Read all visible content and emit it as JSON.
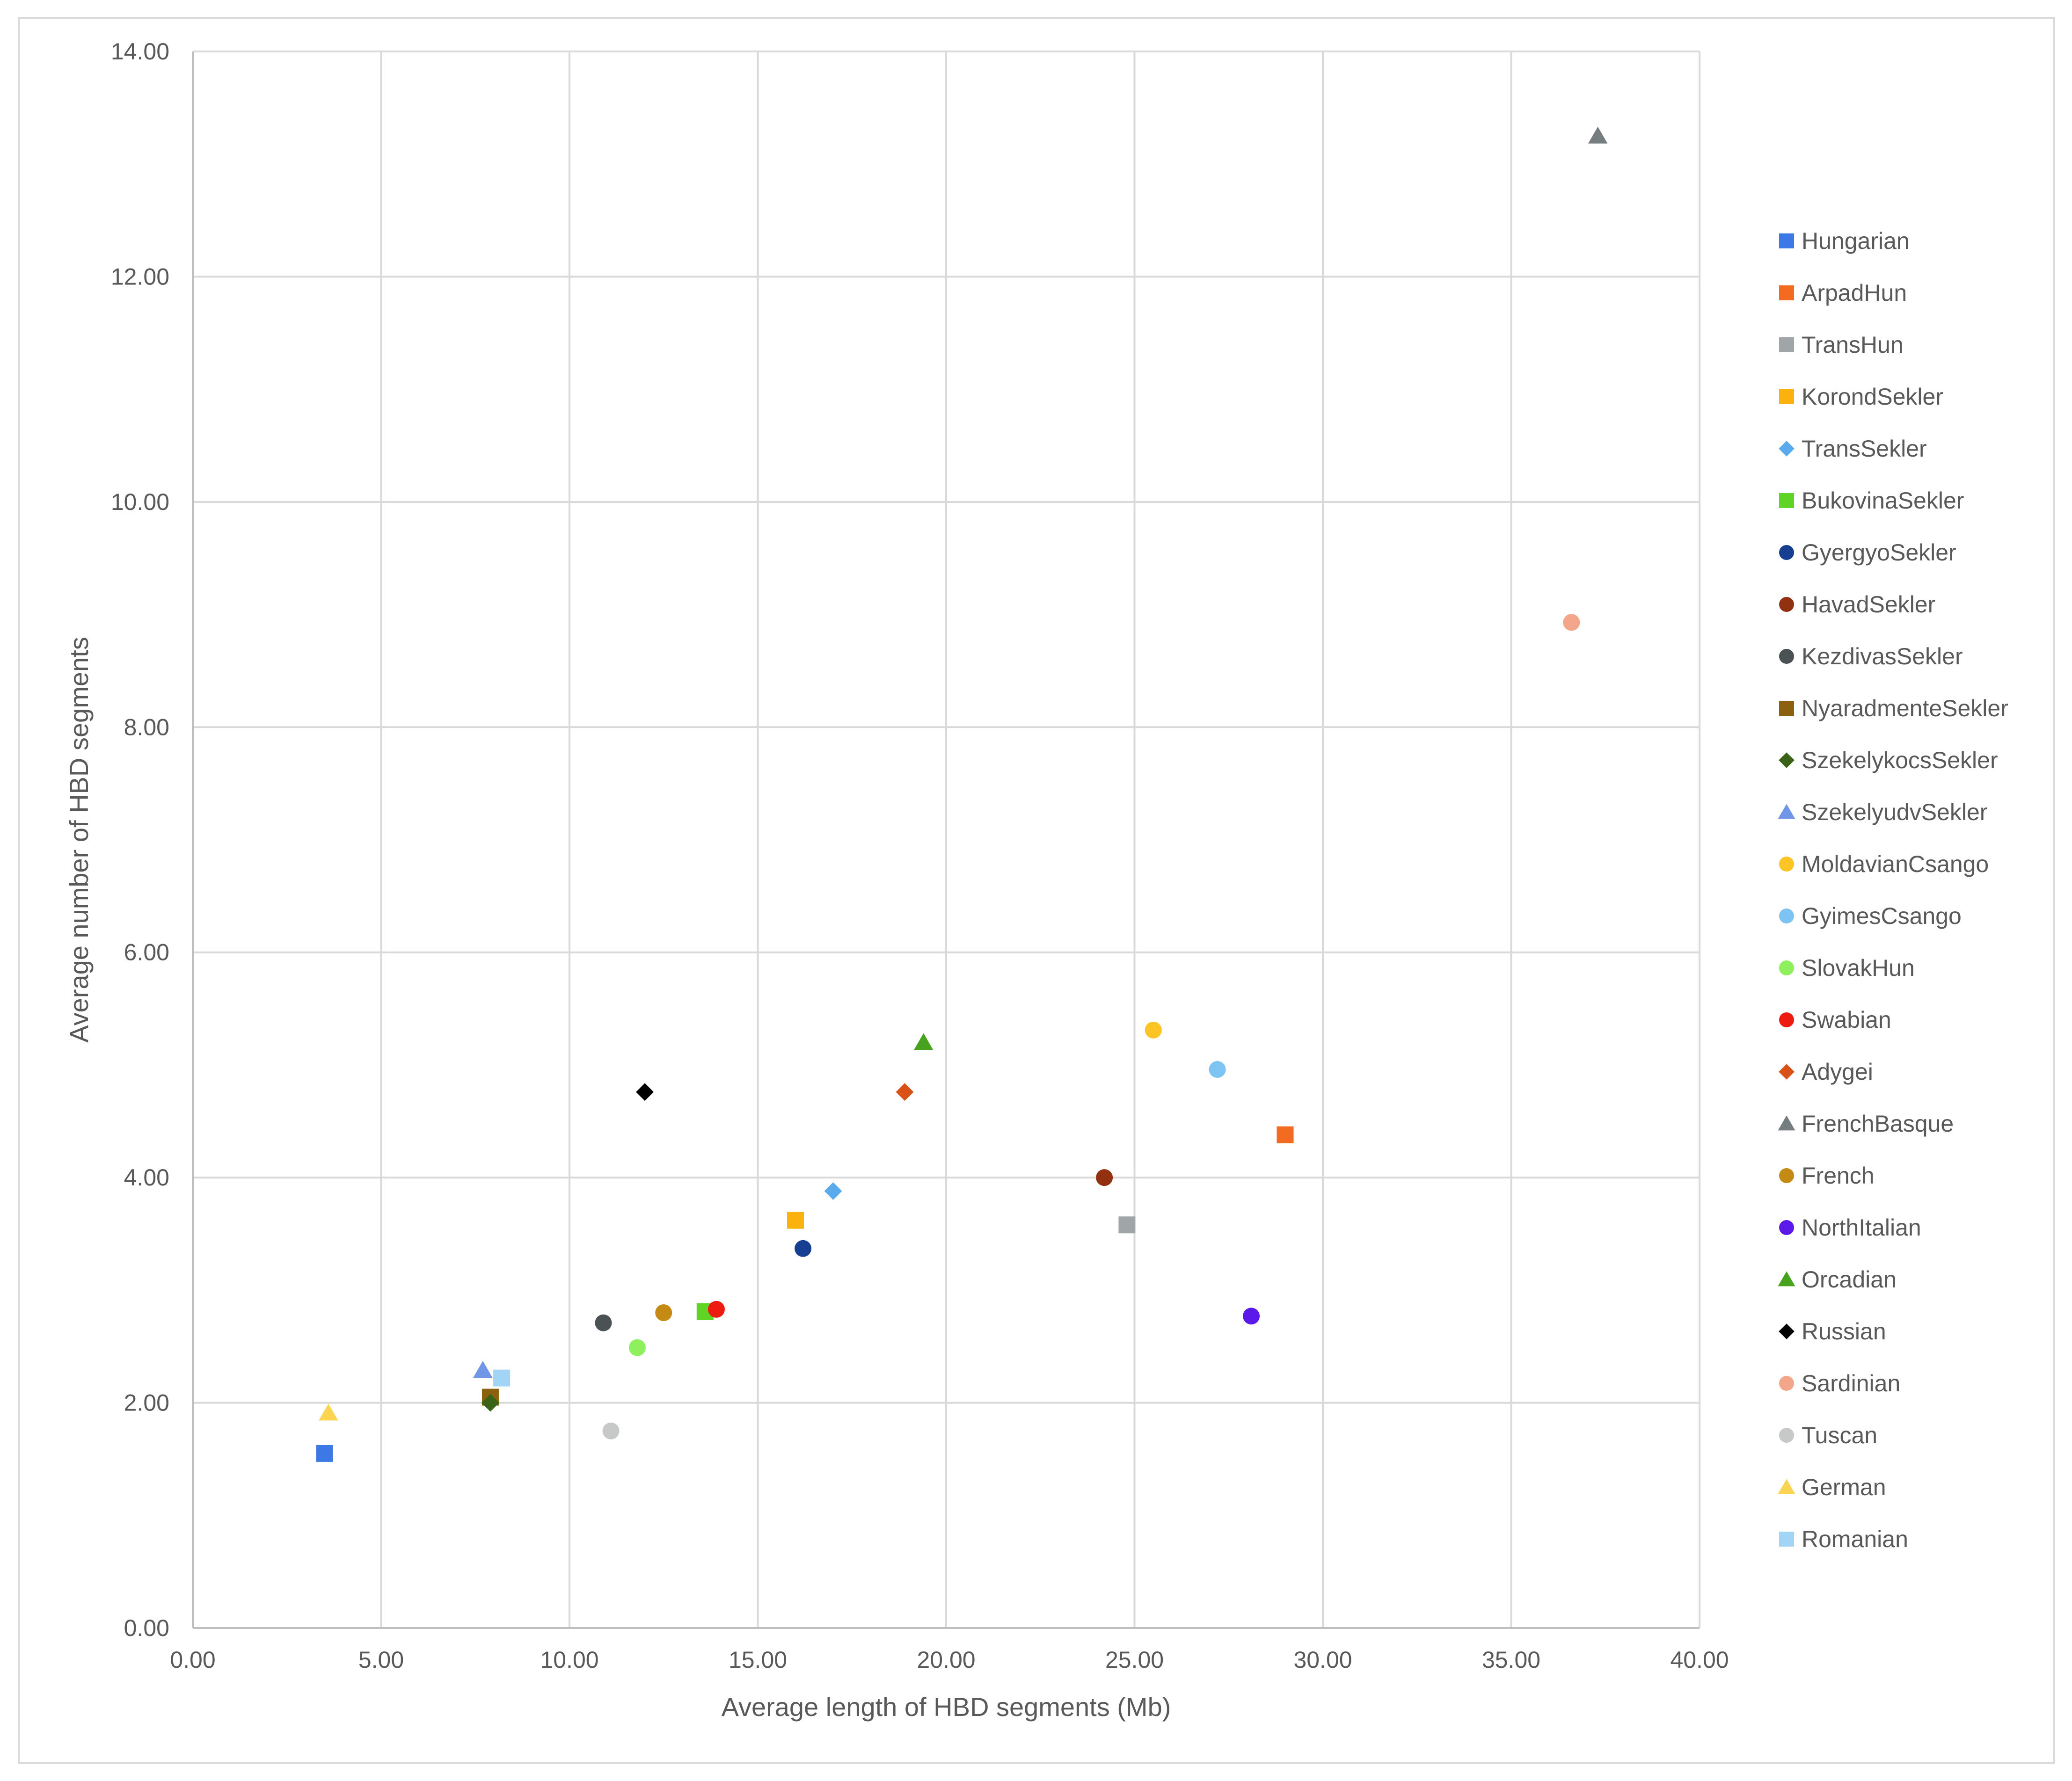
{
  "chart_data": {
    "type": "scatter",
    "title": "",
    "xlabel": "Average length of HBD segments (Mb)",
    "ylabel": "Average number of HBD segments",
    "xlim": [
      0,
      40
    ],
    "ylim": [
      0,
      14
    ],
    "grid": true,
    "legend_position": "right",
    "x_ticks": [
      "0.00",
      "5.00",
      "10.00",
      "15.00",
      "20.00",
      "25.00",
      "30.00",
      "35.00",
      "40.00"
    ],
    "y_ticks": [
      "0.00",
      "2.00",
      "4.00",
      "6.00",
      "8.00",
      "10.00",
      "12.00",
      "14.00"
    ],
    "series": [
      {
        "name": "Hungarian",
        "marker": "square",
        "color": "#3c78e6",
        "x": 3.5,
        "y": 1.55
      },
      {
        "name": "ArpadHun",
        "marker": "square",
        "color": "#f26b21",
        "x": 29.0,
        "y": 4.38
      },
      {
        "name": "TransHun",
        "marker": "square",
        "color": "#a0a5a8",
        "x": 24.8,
        "y": 3.58
      },
      {
        "name": "KorondSekler",
        "marker": "square",
        "color": "#fbb20e",
        "x": 16.0,
        "y": 3.62
      },
      {
        "name": "TransSekler",
        "marker": "diamond",
        "color": "#5aaaee",
        "x": 17.0,
        "y": 3.88
      },
      {
        "name": "BukovinaSekler",
        "marker": "square",
        "color": "#5fd424",
        "x": 13.6,
        "y": 2.81
      },
      {
        "name": "GyergyoSekler",
        "marker": "circle",
        "color": "#173f91",
        "x": 16.2,
        "y": 3.37
      },
      {
        "name": "HavadSekler",
        "marker": "circle",
        "color": "#92310f",
        "x": 24.2,
        "y": 4.0
      },
      {
        "name": "KezdivasSekler",
        "marker": "circle",
        "color": "#4b5254",
        "x": 10.9,
        "y": 2.71
      },
      {
        "name": "NyaradmenteSekler",
        "marker": "square",
        "color": "#8b6110",
        "x": 7.9,
        "y": 2.05
      },
      {
        "name": "SzekelykocsSekler",
        "marker": "diamond",
        "color": "#3a6318",
        "x": 7.9,
        "y": 2.0
      },
      {
        "name": "SzekelyudvSekler",
        "marker": "triangle",
        "color": "#6f96e7",
        "x": 7.7,
        "y": 2.29
      },
      {
        "name": "MoldavianCsango",
        "marker": "circle",
        "color": "#fcc425",
        "x": 25.5,
        "y": 5.31
      },
      {
        "name": "GyimesCsango",
        "marker": "circle",
        "color": "#7ec4f2",
        "x": 27.2,
        "y": 4.96
      },
      {
        "name": "SlovakHun",
        "marker": "circle",
        "color": "#8df05c",
        "x": 11.8,
        "y": 2.49
      },
      {
        "name": "Swabian",
        "marker": "circle",
        "color": "#ee1c10",
        "x": 13.9,
        "y": 2.83
      },
      {
        "name": "Adygei",
        "marker": "diamond",
        "color": "#d95117",
        "x": 18.9,
        "y": 4.76
      },
      {
        "name": "FrenchBasque",
        "marker": "triangle",
        "color": "#757d80",
        "x": 37.3,
        "y": 13.25
      },
      {
        "name": "French",
        "marker": "circle",
        "color": "#c48a14",
        "x": 12.5,
        "y": 2.8
      },
      {
        "name": "NorthItalian",
        "marker": "circle",
        "color": "#5b1aea",
        "x": 28.1,
        "y": 2.77
      },
      {
        "name": "Orcadian",
        "marker": "triangle",
        "color": "#47a31e",
        "x": 19.4,
        "y": 5.2
      },
      {
        "name": "Russian",
        "marker": "diamond",
        "color": "#000000",
        "x": 12.0,
        "y": 4.76
      },
      {
        "name": "Sardinian",
        "marker": "circle",
        "color": "#f4a68a",
        "x": 36.6,
        "y": 8.93
      },
      {
        "name": "Tuscan",
        "marker": "circle",
        "color": "#c6c9c8",
        "x": 11.1,
        "y": 1.75
      },
      {
        "name": "German",
        "marker": "triangle",
        "color": "#fbd452",
        "x": 3.6,
        "y": 1.91
      },
      {
        "name": "Romanian",
        "marker": "square",
        "color": "#a2d5f5",
        "x": 8.2,
        "y": 2.22
      }
    ]
  },
  "colors": {
    "gridline": "#d9d9d9",
    "axis_line": "#bfbfbf",
    "text": "#595959",
    "frame": "#d9d9d9"
  }
}
